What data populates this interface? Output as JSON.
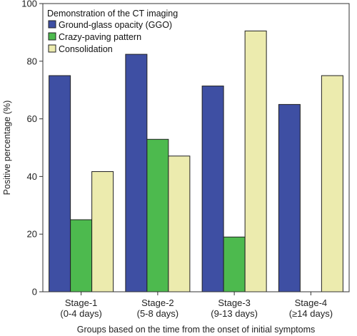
{
  "chart_data": {
    "type": "bar",
    "title": "",
    "xlabel": "Groups based on the time from the onset of initial symptoms",
    "ylabel": "Positive percentage (%)",
    "ylim": [
      0,
      100
    ],
    "yticks": [
      0,
      20,
      40,
      60,
      80,
      100
    ],
    "grid": false,
    "categories": [
      [
        "Stage-1",
        "(0-4 days)"
      ],
      [
        "Stage-2",
        "(5-8 days)"
      ],
      [
        "Stage-3",
        "(9-13 days)"
      ],
      [
        "Stage-4",
        "(≥14 days)"
      ]
    ],
    "legend": {
      "title": "Demonstration of the CT imaging",
      "placement": "top-left"
    },
    "series": [
      {
        "name": "Ground-glass opacity (GGO)",
        "color": "#3e4fa3",
        "values": [
          75,
          82.4,
          71.4,
          65
        ]
      },
      {
        "name": "Crazy-paving pattern",
        "color": "#4dba4e",
        "values": [
          25,
          52.9,
          19,
          0
        ]
      },
      {
        "name": "Consolidation",
        "color": "#ecebae",
        "values": [
          41.7,
          47.1,
          90.5,
          75
        ]
      }
    ]
  }
}
